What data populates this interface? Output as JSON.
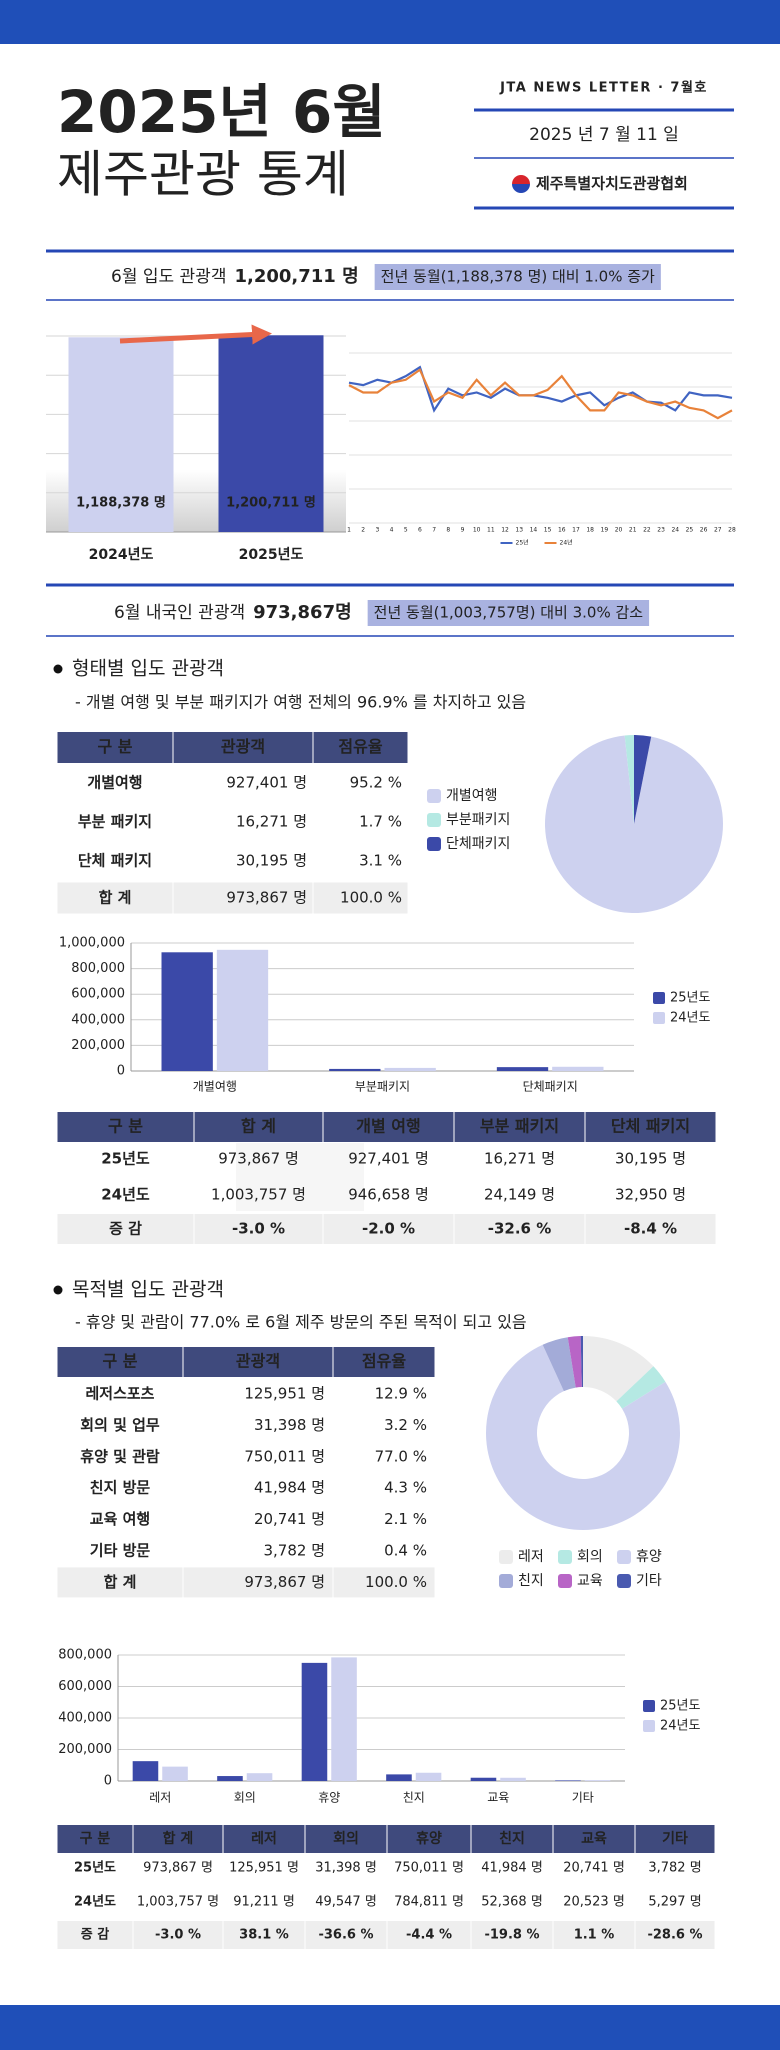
{
  "header": {
    "title": "2025년 6월",
    "subtitle": "제주관광 통계",
    "newsletter": "JTA NEWS LETTER · 7월호",
    "date": "2025 년  7 월  11 일",
    "org": "제주특별자치도관광협회"
  },
  "summary1": {
    "label": "6월 입도 관광객",
    "value": "1,200,711 명",
    "note": "전년 동월(1,188,378 명) 대비 1.0% 증가"
  },
  "summary2": {
    "label": "6월 내국인 관광객",
    "value": "973,867명",
    "note": "전년 동월(1,003,757명) 대비 3.0% 감소"
  },
  "section1": {
    "title": "형태별 입도 관광객",
    "desc": "- 개별 여행 및 부분 패키지가 여행 전체의 96.9% 를 차지하고 있음"
  },
  "table1": {
    "header": [
      "구 분",
      "관광객",
      "점유율"
    ],
    "rows": [
      [
        "개별여행",
        "927,401 명",
        "95.2 %"
      ],
      [
        "부분 패키지",
        "16,271 명",
        "1.7 %"
      ],
      [
        "단체 패키지",
        "30,195 명",
        "3.1 %"
      ],
      [
        "합 계",
        "973,867 명",
        "100.0 %"
      ]
    ]
  },
  "table2": {
    "header": [
      "구 분",
      "합 계",
      "개별 여행",
      "부분 패키지",
      "단체 패키지"
    ],
    "rows": [
      [
        "25년도",
        "973,867 명",
        "927,401 명",
        "16,271 명",
        "30,195 명"
      ],
      [
        "24년도",
        "1,003,757 명",
        "946,658 명",
        "24,149 명",
        "32,950 명"
      ],
      [
        "증 감",
        "-3.0 %",
        "-2.0 %",
        "-32.6 %",
        "-8.4 %"
      ]
    ]
  },
  "section2": {
    "title": "목적별 입도 관광객",
    "desc": "- 휴양 및 관람이 77.0% 로 6월 제주 방문의 주된 목적이 되고 있음"
  },
  "table3": {
    "header": [
      "구 분",
      "관광객",
      "점유율"
    ],
    "rows": [
      [
        "레저스포츠",
        "125,951 명",
        "12.9 %"
      ],
      [
        "회의 및 업무",
        "31,398 명",
        "3.2 %"
      ],
      [
        "휴양 및 관람",
        "750,011 명",
        "77.0 %"
      ],
      [
        "친지 방문",
        "41,984 명",
        "4.3 %"
      ],
      [
        "교육 여행",
        "20,741 명",
        "2.1 %"
      ],
      [
        "기타 방문",
        "3,782 명",
        "0.4 %"
      ],
      [
        "합 계",
        "973,867 명",
        "100.0 %"
      ]
    ]
  },
  "table4": {
    "header": [
      "구 분",
      "합 계",
      "레저",
      "회의",
      "휴양",
      "친지",
      "교육",
      "기타"
    ],
    "rows": [
      [
        "25년도",
        "973,867 명",
        "125,951 명",
        "31,398 명",
        "750,011 명",
        "41,984 명",
        "20,741 명",
        "3,782 명"
      ],
      [
        "24년도",
        "1,003,757 명",
        "91,211 명",
        "49,547 명",
        "784,811 명",
        "52,368 명",
        "20,523 명",
        "5,297 명"
      ],
      [
        "증 감",
        "-3.0 %",
        "38.1 %",
        "-36.6 %",
        "-4.4 %",
        "-19.8 %",
        "1.1 %",
        "-28.6 %"
      ]
    ]
  },
  "chart_data": [
    {
      "type": "bar",
      "categories": [
        "2024년도",
        "2025년도"
      ],
      "values": [
        1188378,
        1200711
      ],
      "value_labels": [
        "1,188,378 명",
        "1,200,711 명"
      ],
      "colors": [
        "#cdd1ef",
        "#3b49a8"
      ],
      "ylim": [
        0,
        1300000
      ],
      "grid": true
    },
    {
      "type": "line",
      "x": [
        1,
        2,
        3,
        4,
        5,
        6,
        7,
        8,
        9,
        10,
        11,
        12,
        13,
        14,
        15,
        16,
        17,
        18,
        19,
        20,
        21,
        22,
        23,
        24,
        25,
        26,
        27,
        28
      ],
      "xlim": [
        1,
        28
      ],
      "ylim": [
        0,
        50000
      ],
      "grid": true,
      "legend": "bottom",
      "series": [
        {
          "name": "25년",
          "color": "#4064c2",
          "values": [
            36670,
            35900,
            37570,
            36670,
            38700,
            41500,
            28000,
            34800,
            32700,
            33600,
            31940,
            34800,
            32700,
            32700,
            31940,
            30760,
            32700,
            33600,
            29580,
            31940,
            33600,
            30760,
            30400,
            28000,
            33600,
            32700,
            32700,
            31940
          ]
        },
        {
          "name": "24년",
          "color": "#e8823a",
          "values": [
            35900,
            33600,
            33600,
            36670,
            37570,
            40700,
            30760,
            33600,
            31940,
            37570,
            32700,
            36670,
            32700,
            32700,
            34400,
            38700,
            32700,
            28000,
            28000,
            33600,
            32700,
            30760,
            29580,
            30760,
            28800,
            28000,
            25600,
            28000
          ]
        }
      ]
    },
    {
      "type": "pie",
      "categories": [
        "개별여행",
        "부분패키지",
        "단체패키지"
      ],
      "values": [
        927401,
        16271,
        30195
      ],
      "colors": [
        "#cdd1ef",
        "#b5e9e3",
        "#3b49a8"
      ],
      "legend": "left"
    },
    {
      "type": "bar",
      "categories": [
        "개별여행",
        "부분패키지",
        "단체패키지"
      ],
      "ylim": [
        0,
        1000000
      ],
      "yticks": [
        0,
        {
          "value": 200000,
          "label": "200,000"
        },
        {
          "value": 400000,
          "label": "400,000"
        },
        {
          "value": 600000,
          "label": "600,000"
        },
        {
          "value": 800000,
          "label": "800,000"
        },
        {
          "value": 1000000,
          "label": "1,000,000"
        }
      ],
      "grid": true,
      "legend": "right",
      "series": [
        {
          "name": "25년도",
          "color": "#3b49a8",
          "values": [
            927401,
            16271,
            30195
          ]
        },
        {
          "name": "24년도",
          "color": "#cdd1ef",
          "values": [
            946658,
            24149,
            32950
          ]
        }
      ]
    },
    {
      "type": "donut",
      "categories": [
        "레저",
        "회의",
        "휴양",
        "친지",
        "교육",
        "기타"
      ],
      "values": [
        125951,
        31398,
        750011,
        41984,
        20741,
        3782
      ],
      "colors": [
        "#ececec",
        "#b5e9e3",
        "#cdd1ef",
        "#a3abd8",
        "#b865c6",
        "#4a5ab0"
      ],
      "legend": "bottom"
    },
    {
      "type": "bar",
      "categories": [
        "레저",
        "회의",
        "휴양",
        "친지",
        "교육",
        "기타"
      ],
      "ylim": [
        0,
        800000
      ],
      "yticks": [
        0,
        {
          "value": 200000,
          "label": "200,000"
        },
        {
          "value": 400000,
          "label": "400,000"
        },
        {
          "value": 600000,
          "label": "600,000"
        },
        {
          "value": 800000,
          "label": "800,000"
        }
      ],
      "grid": true,
      "legend": "right",
      "series": [
        {
          "name": "25년도",
          "color": "#3b49a8",
          "values": [
            125951,
            31398,
            750011,
            41984,
            20741,
            3782
          ]
        },
        {
          "name": "24년도",
          "color": "#cdd1ef",
          "values": [
            91211,
            49547,
            784811,
            52368,
            20523,
            5297
          ]
        }
      ]
    }
  ]
}
